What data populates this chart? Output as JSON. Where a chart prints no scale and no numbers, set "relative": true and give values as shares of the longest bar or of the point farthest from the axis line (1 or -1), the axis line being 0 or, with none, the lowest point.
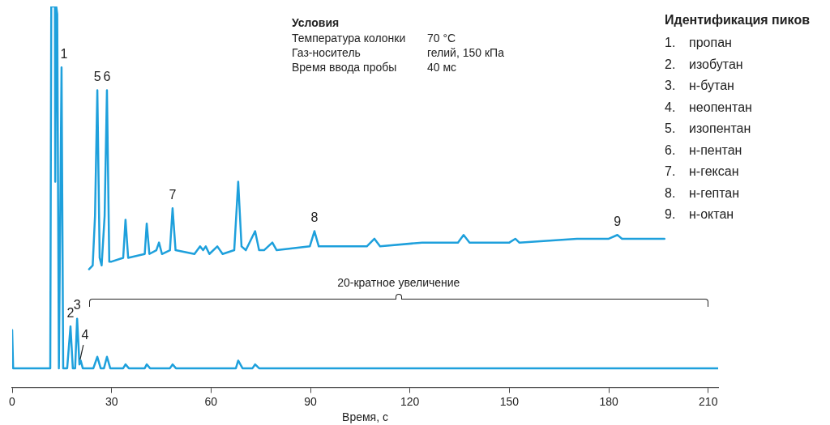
{
  "chart_data": {
    "type": "line",
    "relative": true,
    "xlabel": "Время, с",
    "xlim": [
      0,
      213
    ],
    "xticks": [
      0,
      30,
      60,
      90,
      120,
      150,
      180,
      210
    ],
    "grid": false,
    "legend": false,
    "marker": "none",
    "line_style": "solid",
    "series": [
      {
        "color": "#1ea0dc",
        "x": [
          0,
          0.3,
          11.5,
          11.8,
          12.9,
          13.0,
          13.3,
          13.6,
          14.1,
          14.9,
          15.4,
          16.6,
          17.6,
          18.3,
          19.0,
          19.6,
          20.3,
          20.7,
          21.3,
          24.5,
          25.7,
          26.7,
          27.7,
          28.6,
          29.6,
          33.5,
          34.2,
          35.2,
          40.0,
          40.6,
          41.6,
          47.6,
          48.4,
          49.4,
          67.5,
          68.2,
          69.5,
          72.5,
          73.3,
          74.5,
          213
        ],
        "values": [
          0.15,
          0.05,
          0.05,
          1.0,
          1.0,
          0.54,
          1.0,
          0.98,
          0.05,
          0.84,
          0.05,
          0.05,
          0.16,
          0.05,
          0.05,
          0.18,
          0.06,
          0.07,
          0.05,
          0.05,
          0.08,
          0.05,
          0.05,
          0.08,
          0.05,
          0.05,
          0.06,
          0.05,
          0.05,
          0.06,
          0.05,
          0.05,
          0.06,
          0.05,
          0.05,
          0.07,
          0.05,
          0.05,
          0.06,
          0.05,
          0.05
        ]
      },
      {
        "color": "#1ea0dc",
        "x": [
          23.2,
          24.3,
          25.0,
          25.7,
          26.4,
          27.0,
          27.9,
          28.6,
          29.3,
          30.0,
          33.5,
          34.2,
          35.0,
          40.0,
          40.6,
          41.4,
          43.5,
          44.3,
          45.2,
          47.6,
          48.4,
          49.3,
          55.0,
          56.7,
          57.6,
          58.4,
          59.5,
          61.9,
          63.5,
          67.0,
          68.2,
          69.2,
          70.5,
          73.3,
          74.5,
          76.0,
          78.5,
          79.8,
          89.8,
          91.2,
          92.5,
          107.0,
          109.3,
          111.0,
          123.7,
          134.5,
          136.2,
          138.0,
          150.0,
          151.8,
          153.0,
          170.4,
          180.0,
          182.6,
          184.0,
          196.8
        ],
        "values": [
          0.31,
          0.32,
          0.45,
          0.78,
          0.34,
          0.32,
          0.45,
          0.78,
          0.33,
          0.33,
          0.34,
          0.44,
          0.34,
          0.35,
          0.43,
          0.35,
          0.36,
          0.38,
          0.35,
          0.36,
          0.47,
          0.36,
          0.35,
          0.37,
          0.36,
          0.37,
          0.35,
          0.37,
          0.35,
          0.36,
          0.54,
          0.37,
          0.36,
          0.41,
          0.36,
          0.36,
          0.38,
          0.36,
          0.37,
          0.41,
          0.37,
          0.37,
          0.39,
          0.37,
          0.38,
          0.38,
          0.4,
          0.38,
          0.38,
          0.39,
          0.38,
          0.39,
          0.39,
          0.4,
          0.39,
          0.39
        ]
      }
    ],
    "annotations": [
      {
        "text": "1",
        "x": 14.9,
        "y": 0.84
      },
      {
        "text": "2",
        "x": 17.6,
        "y": 0.16
      },
      {
        "text": "3",
        "x": 19.6,
        "y": 0.18
      },
      {
        "text": "4",
        "x": 20.5,
        "y": 0.06
      },
      {
        "text": "5",
        "x": 25.7,
        "y": 0.78
      },
      {
        "text": "6",
        "x": 28.6,
        "y": 0.78
      },
      {
        "text": "7",
        "x": 48.4,
        "y": 0.47
      },
      {
        "text": "8",
        "x": 91.2,
        "y": 0.41
      },
      {
        "text": "9",
        "x": 182.6,
        "y": 0.4
      },
      "Условия",
      "Температура колонки\t70 °C",
      "Газ-носитель\tгелий, 150 кПа",
      "Время ввода пробы\t40 мс",
      "Идентификация пиков",
      "1.\tпропан",
      "2.\tизобутан",
      "3.\tн-бутан",
      "4.\tнеопентан",
      "5.\tизопентан",
      "6.\tн-пентан",
      "7.\tн-гексан",
      "8.\tн-гептан",
      "9.\tн-октан",
      "20-кратное увеличение"
    ]
  }
}
